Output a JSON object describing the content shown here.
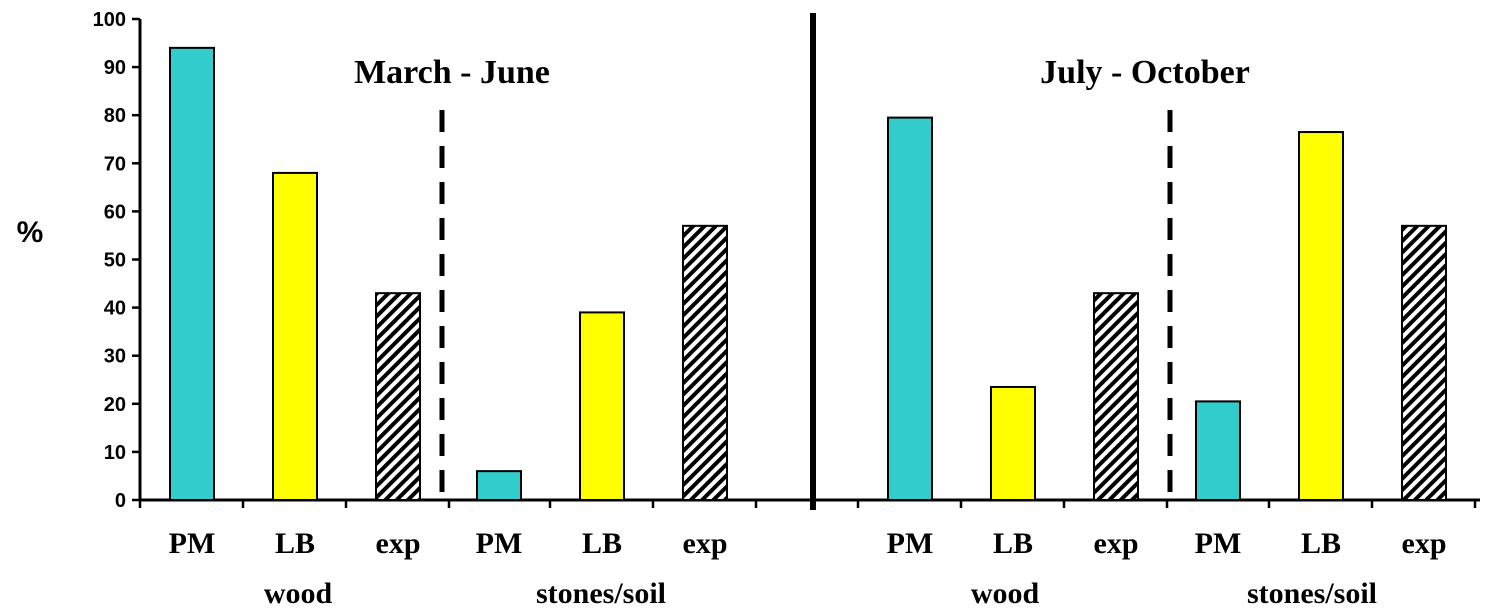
{
  "chart_data": {
    "type": "bar",
    "ylabel": "%",
    "ylim": [
      0,
      100
    ],
    "yticks": [
      "0",
      "10",
      "20",
      "30",
      "40",
      "50",
      "60",
      "70",
      "80",
      "90",
      "100"
    ],
    "grid": false,
    "periods": [
      {
        "label": "March  -    June",
        "groups": [
          {
            "label": "wood",
            "bars": [
              {
                "category": "PM",
                "value": 94,
                "color": "#33CCCC",
                "pattern": "solid"
              },
              {
                "category": "LB",
                "value": 68,
                "color": "#FFFF00",
                "pattern": "solid"
              },
              {
                "category": "exp",
                "value": 43,
                "color": "#FFFFFF",
                "pattern": "hatch"
              }
            ]
          },
          {
            "label": "stones/soil",
            "bars": [
              {
                "category": "PM",
                "value": 6,
                "color": "#33CCCC",
                "pattern": "solid"
              },
              {
                "category": "LB",
                "value": 39,
                "color": "#FFFF00",
                "pattern": "solid"
              },
              {
                "category": "exp",
                "value": 57,
                "color": "#FFFFFF",
                "pattern": "hatch"
              }
            ]
          }
        ]
      },
      {
        "label": "July    -  October",
        "groups": [
          {
            "label": "wood",
            "bars": [
              {
                "category": "PM",
                "value": 79.5,
                "color": "#33CCCC",
                "pattern": "solid"
              },
              {
                "category": "LB",
                "value": 23.5,
                "color": "#FFFF00",
                "pattern": "solid"
              },
              {
                "category": "exp",
                "value": 43,
                "color": "#FFFFFF",
                "pattern": "hatch"
              }
            ]
          },
          {
            "label": "stones/soil",
            "bars": [
              {
                "category": "PM",
                "value": 20.5,
                "color": "#33CCCC",
                "pattern": "solid"
              },
              {
                "category": "LB",
                "value": 76.5,
                "color": "#FFFF00",
                "pattern": "solid"
              },
              {
                "category": "exp",
                "value": 57,
                "color": "#FFFFFF",
                "pattern": "hatch"
              }
            ]
          }
        ]
      }
    ]
  }
}
